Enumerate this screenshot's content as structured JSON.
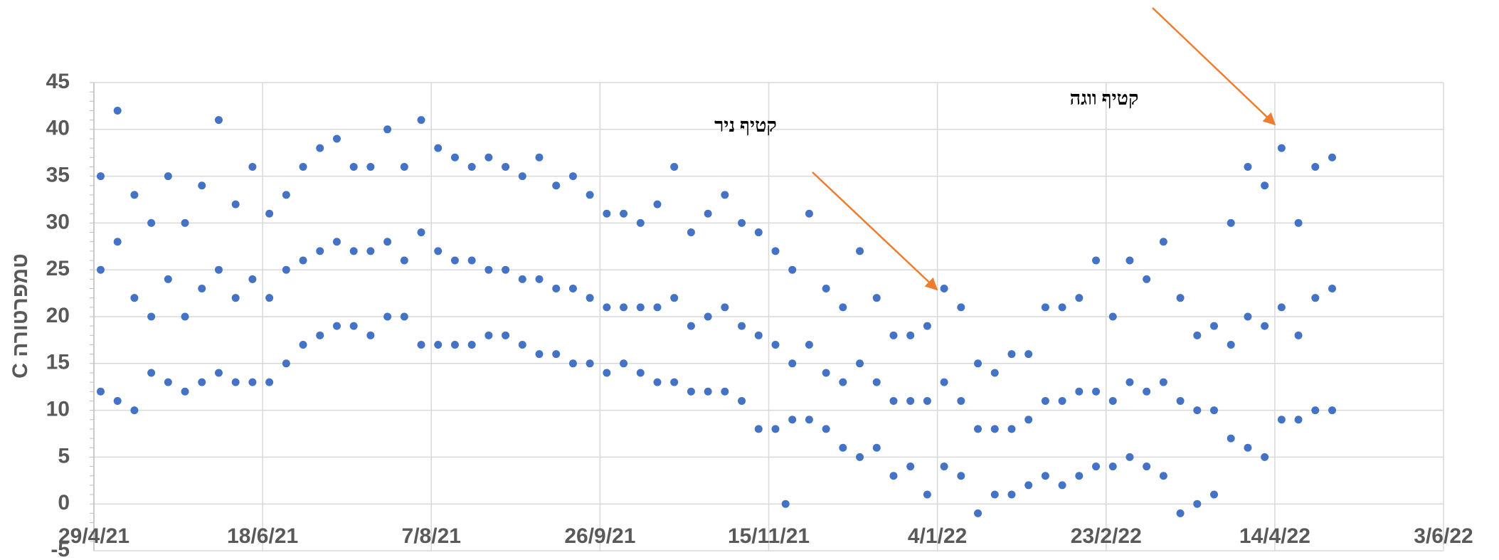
{
  "chart_data": {
    "type": "scatter",
    "ylabel": "טמפרטורה C",
    "annotations": [
      "קטיף ניר",
      "קטיף ווגה"
    ],
    "color": "#4472c4",
    "grid": true,
    "ylim": [
      -5,
      45
    ],
    "yticks": [
      -5,
      0,
      5,
      10,
      15,
      20,
      25,
      30,
      35,
      40,
      45
    ],
    "xlim": [
      "2021-04-29",
      "2022-06-03"
    ],
    "xticks": [
      {
        "value": "2021-04-29",
        "label": "29/4/21"
      },
      {
        "value": "2021-06-18",
        "label": "18/6/21"
      },
      {
        "value": "2021-08-07",
        "label": "7/8/21"
      },
      {
        "value": "2021-09-26",
        "label": "26/9/21"
      },
      {
        "value": "2021-11-15",
        "label": "15/11/21"
      },
      {
        "value": "2022-01-04",
        "label": "4/1/22"
      },
      {
        "value": "2022-02-23",
        "label": "23/2/22"
      },
      {
        "value": "2022-04-14",
        "label": "14/4/22"
      },
      {
        "value": "2022-06-03",
        "label": "3/6/22"
      }
    ],
    "x": [
      "2021-05-01",
      "2021-05-01",
      "2021-05-01",
      "2021-05-06",
      "2021-05-06",
      "2021-05-06",
      "2021-05-11",
      "2021-05-11",
      "2021-05-11",
      "2021-05-16",
      "2021-05-16",
      "2021-05-16",
      "2021-05-21",
      "2021-05-21",
      "2021-05-21",
      "2021-05-26",
      "2021-05-26",
      "2021-05-26",
      "2021-05-31",
      "2021-05-31",
      "2021-05-31",
      "2021-06-05",
      "2021-06-05",
      "2021-06-05",
      "2021-06-10",
      "2021-06-10",
      "2021-06-10",
      "2021-06-15",
      "2021-06-15",
      "2021-06-15",
      "2021-06-20",
      "2021-06-20",
      "2021-06-20",
      "2021-06-25",
      "2021-06-25",
      "2021-06-25",
      "2021-06-30",
      "2021-06-30",
      "2021-06-30",
      "2021-07-05",
      "2021-07-05",
      "2021-07-05",
      "2021-07-10",
      "2021-07-10",
      "2021-07-10",
      "2021-07-15",
      "2021-07-15",
      "2021-07-15",
      "2021-07-20",
      "2021-07-20",
      "2021-07-20",
      "2021-07-25",
      "2021-07-25",
      "2021-07-25",
      "2021-07-30",
      "2021-07-30",
      "2021-07-30",
      "2021-08-04",
      "2021-08-04",
      "2021-08-04",
      "2021-08-09",
      "2021-08-09",
      "2021-08-09",
      "2021-08-14",
      "2021-08-14",
      "2021-08-14",
      "2021-08-19",
      "2021-08-19",
      "2021-08-19",
      "2021-08-24",
      "2021-08-24",
      "2021-08-24",
      "2021-08-29",
      "2021-08-29",
      "2021-08-29",
      "2021-09-03",
      "2021-09-03",
      "2021-09-03",
      "2021-09-08",
      "2021-09-08",
      "2021-09-08",
      "2021-09-13",
      "2021-09-13",
      "2021-09-13",
      "2021-09-18",
      "2021-09-18",
      "2021-09-18",
      "2021-09-23",
      "2021-09-23",
      "2021-09-23",
      "2021-09-28",
      "2021-09-28",
      "2021-09-28",
      "2021-10-03",
      "2021-10-03",
      "2021-10-03",
      "2021-10-08",
      "2021-10-08",
      "2021-10-08",
      "2021-10-13",
      "2021-10-13",
      "2021-10-13",
      "2021-10-18",
      "2021-10-18",
      "2021-10-18",
      "2021-10-23",
      "2021-10-23",
      "2021-10-23",
      "2021-10-28",
      "2021-10-28",
      "2021-10-28",
      "2021-11-02",
      "2021-11-02",
      "2021-11-02",
      "2021-11-07",
      "2021-11-07",
      "2021-11-07",
      "2021-11-12",
      "2021-11-12",
      "2021-11-12",
      "2021-11-17",
      "2021-11-17",
      "2021-11-17",
      "2021-11-20",
      "2021-11-22",
      "2021-11-22",
      "2021-11-22",
      "2021-11-27",
      "2021-11-27",
      "2021-11-27",
      "2021-12-02",
      "2021-12-02",
      "2021-12-02",
      "2021-12-07",
      "2021-12-07",
      "2021-12-07",
      "2021-12-12",
      "2021-12-12",
      "2021-12-12",
      "2021-12-17",
      "2021-12-17",
      "2021-12-17",
      "2021-12-22",
      "2021-12-22",
      "2021-12-22",
      "2021-12-27",
      "2021-12-27",
      "2021-12-27",
      "2022-01-01",
      "2022-01-01",
      "2022-01-01",
      "2022-01-06",
      "2022-01-06",
      "2022-01-06",
      "2022-01-11",
      "2022-01-11",
      "2022-01-11",
      "2022-01-16",
      "2022-01-16",
      "2022-01-16",
      "2022-01-21",
      "2022-01-21",
      "2022-01-21",
      "2022-01-26",
      "2022-01-26",
      "2022-01-26",
      "2022-01-31",
      "2022-01-31",
      "2022-01-31",
      "2022-02-05",
      "2022-02-05",
      "2022-02-05",
      "2022-02-10",
      "2022-02-10",
      "2022-02-10",
      "2022-02-15",
      "2022-02-15",
      "2022-02-15",
      "2022-02-20",
      "2022-02-20",
      "2022-02-20",
      "2022-02-25",
      "2022-02-25",
      "2022-02-25",
      "2022-03-02",
      "2022-03-02",
      "2022-03-02",
      "2022-03-07",
      "2022-03-07",
      "2022-03-07",
      "2022-03-12",
      "2022-03-12",
      "2022-03-12",
      "2022-03-17",
      "2022-03-17",
      "2022-03-17",
      "2022-03-22",
      "2022-03-22",
      "2022-03-22",
      "2022-03-27",
      "2022-03-27",
      "2022-03-27",
      "2022-04-01",
      "2022-04-01",
      "2022-04-01",
      "2022-04-06",
      "2022-04-06",
      "2022-04-06",
      "2022-04-11",
      "2022-04-11",
      "2022-04-11",
      "2022-04-16",
      "2022-04-16",
      "2022-04-16",
      "2022-04-21",
      "2022-04-21",
      "2022-04-21",
      "2022-04-26",
      "2022-04-26",
      "2022-04-26",
      "2022-05-01",
      "2022-05-01",
      "2022-05-01"
    ],
    "values": [
      35,
      25,
      12,
      42,
      28,
      11,
      33,
      22,
      10,
      30,
      20,
      14,
      35,
      24,
      13,
      30,
      20,
      12,
      34,
      23,
      13,
      41,
      25,
      14,
      32,
      22,
      13,
      36,
      24,
      13,
      31,
      22,
      13,
      33,
      25,
      15,
      36,
      26,
      17,
      38,
      27,
      18,
      39,
      28,
      19,
      36,
      27,
      19,
      36,
      27,
      18,
      40,
      28,
      20,
      36,
      26,
      20,
      41,
      29,
      17,
      38,
      27,
      17,
      37,
      26,
      17,
      36,
      26,
      17,
      37,
      25,
      18,
      36,
      25,
      18,
      35,
      24,
      17,
      37,
      24,
      16,
      34,
      23,
      16,
      35,
      23,
      15,
      33,
      22,
      15,
      31,
      21,
      14,
      31,
      21,
      15,
      30,
      21,
      14,
      32,
      21,
      13,
      36,
      22,
      13,
      29,
      19,
      12,
      31,
      20,
      12,
      33,
      21,
      12,
      30,
      19,
      11,
      29,
      18,
      8,
      27,
      17,
      8,
      0,
      25,
      15,
      9,
      31,
      17,
      9,
      23,
      14,
      8,
      21,
      13,
      6,
      27,
      15,
      5,
      22,
      13,
      6,
      18,
      11,
      3,
      18,
      11,
      4,
      19,
      11,
      1,
      23,
      13,
      4,
      21,
      11,
      3,
      15,
      8,
      -1,
      14,
      8,
      1,
      16,
      8,
      1,
      16,
      9,
      2,
      21,
      11,
      3,
      21,
      11,
      2,
      22,
      12,
      3,
      26,
      12,
      4,
      20,
      11,
      4,
      26,
      13,
      5,
      24,
      12,
      4,
      28,
      13,
      3,
      22,
      11,
      -1,
      18,
      10,
      0,
      19,
      10,
      1,
      30,
      17,
      7,
      36,
      20,
      6,
      34,
      19,
      5,
      38,
      21,
      9,
      30,
      18,
      9,
      36,
      22,
      10,
      37,
      23,
      10
    ]
  }
}
